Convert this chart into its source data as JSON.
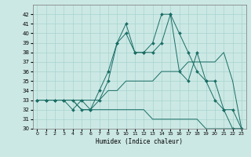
{
  "title": "",
  "xlabel": "Humidex (Indice chaleur)",
  "xlim": [
    -0.5,
    23.5
  ],
  "ylim": [
    30,
    43
  ],
  "yticks": [
    30,
    31,
    32,
    33,
    34,
    35,
    36,
    37,
    38,
    39,
    40,
    41,
    42
  ],
  "xticks": [
    0,
    1,
    2,
    3,
    4,
    5,
    6,
    7,
    8,
    9,
    10,
    11,
    12,
    13,
    14,
    15,
    16,
    17,
    18,
    19,
    20,
    21,
    22,
    23
  ],
  "background_color": "#cce8e4",
  "grid_color": "#a8d4cf",
  "line_color": "#1a6e66",
  "lines": [
    {
      "x": [
        0,
        1,
        2,
        3,
        4,
        5,
        6,
        7,
        8,
        9,
        10,
        11,
        12,
        13,
        14,
        15,
        16,
        17,
        18,
        19,
        20,
        21,
        22,
        23
      ],
      "y": [
        33,
        33,
        33,
        33,
        32,
        33,
        32,
        33,
        35,
        39,
        41,
        38,
        38,
        38,
        39,
        42,
        36,
        35,
        38,
        35,
        35,
        32,
        32,
        30
      ],
      "marker": true,
      "markersize": 2.0
    },
    {
      "x": [
        0,
        1,
        2,
        3,
        4,
        5,
        6,
        7,
        8,
        9,
        10,
        11,
        12,
        13,
        14,
        15,
        16,
        17,
        18,
        19,
        20,
        21,
        22,
        23
      ],
      "y": [
        33,
        33,
        33,
        33,
        33,
        32,
        32,
        34,
        36,
        39,
        40,
        38,
        38,
        39,
        42,
        42,
        40,
        38,
        36,
        35,
        33,
        32,
        30,
        30
      ],
      "marker": true,
      "markersize": 2.0
    },
    {
      "x": [
        0,
        1,
        2,
        3,
        4,
        5,
        6,
        7,
        8,
        9,
        10,
        11,
        12,
        13,
        14,
        15,
        16,
        17,
        18,
        19,
        20,
        21,
        22,
        23
      ],
      "y": [
        33,
        33,
        33,
        33,
        33,
        33,
        33,
        33,
        34,
        34,
        35,
        35,
        35,
        35,
        36,
        36,
        36,
        37,
        37,
        37,
        37,
        38,
        35,
        30
      ],
      "marker": false,
      "markersize": 0
    },
    {
      "x": [
        0,
        1,
        2,
        3,
        4,
        5,
        6,
        7,
        8,
        9,
        10,
        11,
        12,
        13,
        14,
        15,
        16,
        17,
        18,
        19,
        20,
        21,
        22,
        23
      ],
      "y": [
        33,
        33,
        33,
        33,
        33,
        32,
        32,
        32,
        32,
        32,
        32,
        32,
        32,
        31,
        31,
        31,
        31,
        31,
        31,
        30,
        30,
        30,
        30,
        30
      ],
      "marker": false,
      "markersize": 0
    }
  ]
}
